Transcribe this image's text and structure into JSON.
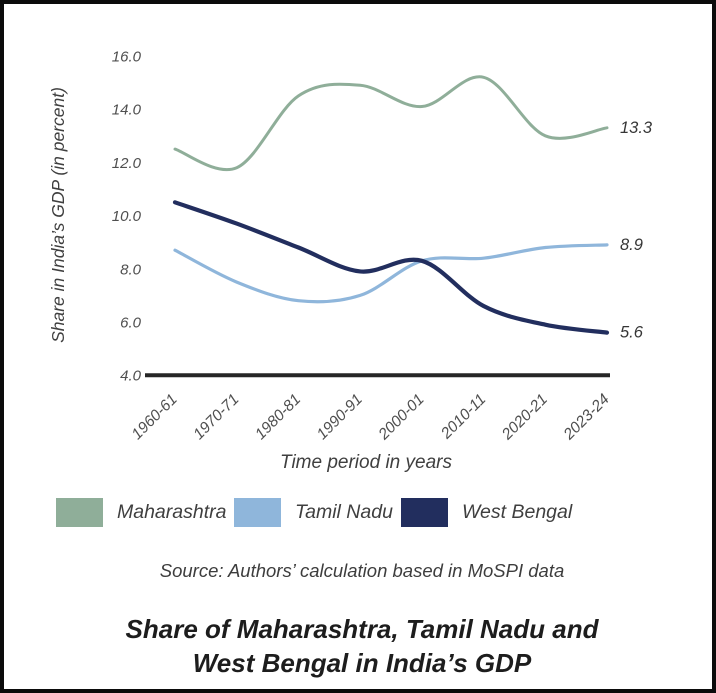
{
  "figure": {
    "y_axis_title": "Share in India’s GDP (in percent)",
    "x_axis_title": "Time period in years",
    "source": "Source: Authors’ calculation based in MoSPI data",
    "title_line1": "Share of Maharashtra, Tamil Nadu and",
    "title_line2": "West Bengal in India’s GDP"
  },
  "chart_data": {
    "type": "line",
    "smooth": true,
    "categories": [
      "1960-61",
      "1970-71",
      "1980-81",
      "1990-91",
      "2000-01",
      "2010-11",
      "2020-21",
      "2023-24"
    ],
    "series": [
      {
        "name": "Maharashtra",
        "color": "#8FAE99",
        "stroke_width": 3,
        "values": [
          12.5,
          11.8,
          14.5,
          14.9,
          14.1,
          15.2,
          13.0,
          13.3
        ],
        "end_label": "13.3"
      },
      {
        "name": "Tamil Nadu",
        "color": "#8FB6DB",
        "stroke_width": 3.2,
        "values": [
          8.7,
          7.5,
          6.8,
          7.0,
          8.3,
          8.4,
          8.8,
          8.9
        ],
        "end_label": "8.9"
      },
      {
        "name": "West Bengal",
        "color": "#222E5E",
        "stroke_width": 4.2,
        "values": [
          10.5,
          9.7,
          8.8,
          7.9,
          8.3,
          6.6,
          5.9,
          5.6
        ],
        "end_label": "5.6"
      }
    ],
    "draw_order": [
      "Maharashtra",
      "Tamil Nadu",
      "West Bengal"
    ],
    "y_ticks": [
      4.0,
      6.0,
      8.0,
      10.0,
      12.0,
      14.0,
      16.0
    ],
    "ylim": [
      4,
      16
    ],
    "grid": false,
    "legend_position": "bottom",
    "colors": {
      "axis_line": "#262626",
      "tick_text": "#4f4f4f",
      "end_label_text": "#363636"
    }
  }
}
